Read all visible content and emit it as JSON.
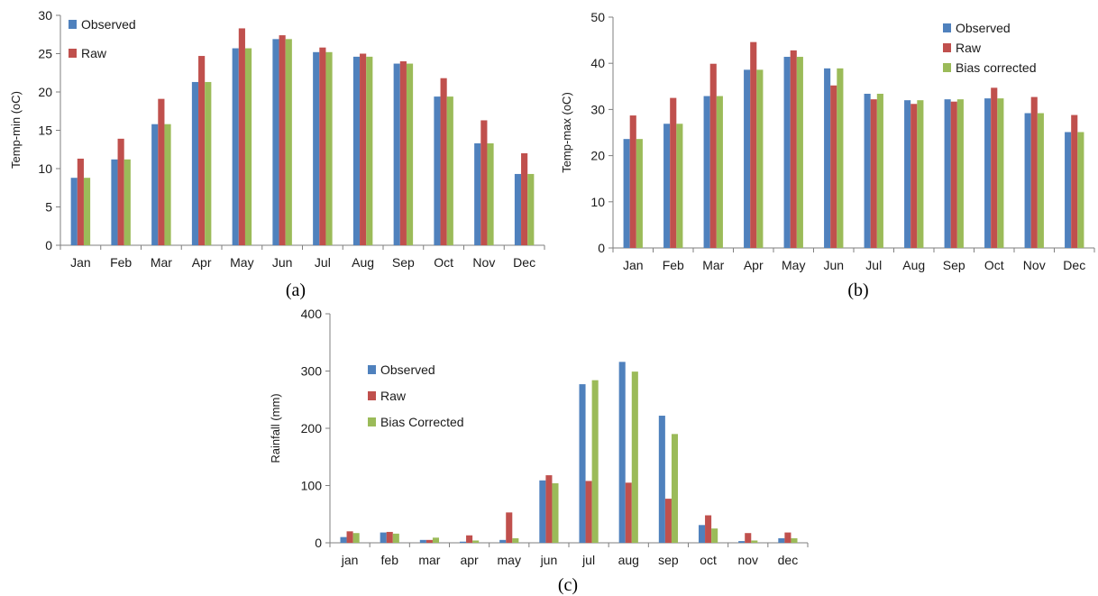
{
  "chart_data": [
    {
      "type": "bar",
      "panel_label": "(a)",
      "ylabel": "Temp-min (oC)",
      "ylim": [
        0,
        30
      ],
      "yticks": [
        0,
        5,
        10,
        15,
        20,
        25,
        30
      ],
      "categories": [
        "Jan",
        "Feb",
        "Mar",
        "Apr",
        "May",
        "Jun",
        "Jul",
        "Aug",
        "Sep",
        "Oct",
        "Nov",
        "Dec"
      ],
      "legend": {
        "placement": "top-left",
        "entries": [
          "Observed",
          "Raw"
        ]
      },
      "series": [
        {
          "name": "Observed",
          "color": "#4f81bd",
          "values": [
            8.8,
            11.2,
            15.8,
            21.3,
            25.7,
            26.9,
            25.2,
            24.6,
            23.7,
            19.4,
            13.3,
            9.3
          ]
        },
        {
          "name": "Raw",
          "color": "#c0504d",
          "values": [
            11.3,
            13.9,
            19.1,
            24.7,
            28.3,
            27.4,
            25.8,
            25.0,
            24.0,
            21.8,
            16.3,
            12.0
          ]
        },
        {
          "name": "",
          "color": "#9bbb59",
          "values": [
            8.8,
            11.2,
            15.8,
            21.3,
            25.7,
            26.9,
            25.2,
            24.6,
            23.7,
            19.4,
            13.3,
            9.3
          ]
        }
      ],
      "grid": false
    },
    {
      "type": "bar",
      "panel_label": "(b)",
      "ylabel": "Temp-max (oC)",
      "ylim": [
        0,
        50
      ],
      "yticks": [
        0,
        10,
        20,
        30,
        40,
        50
      ],
      "categories": [
        "Jan",
        "Feb",
        "Mar",
        "Apr",
        "May",
        "Jun",
        "Jul",
        "Aug",
        "Sep",
        "Oct",
        "Nov",
        "Dec"
      ],
      "legend": {
        "placement": "top-right",
        "entries": [
          "Observed",
          "Raw",
          "Bias corrected"
        ]
      },
      "series": [
        {
          "name": "Observed",
          "color": "#4f81bd",
          "values": [
            23.6,
            26.9,
            32.9,
            38.6,
            41.4,
            38.9,
            33.4,
            32.0,
            32.2,
            32.4,
            29.2,
            25.1
          ]
        },
        {
          "name": "Raw",
          "color": "#c0504d",
          "values": [
            28.7,
            32.5,
            39.9,
            44.6,
            42.8,
            35.2,
            32.2,
            31.2,
            31.7,
            34.7,
            32.7,
            28.8
          ]
        },
        {
          "name": "Bias corrected",
          "color": "#9bbb59",
          "values": [
            23.6,
            26.9,
            32.9,
            38.6,
            41.4,
            38.9,
            33.4,
            32.0,
            32.2,
            32.4,
            29.2,
            25.1
          ]
        }
      ],
      "grid": false
    },
    {
      "type": "bar",
      "panel_label": "(c)",
      "ylabel": "Rainfall (mm)",
      "ylim": [
        0,
        400
      ],
      "yticks": [
        0,
        100,
        200,
        300,
        400
      ],
      "categories": [
        "jan",
        "feb",
        "mar",
        "apr",
        "may",
        "jun",
        "jul",
        "aug",
        "sep",
        "oct",
        "nov",
        "dec"
      ],
      "legend": {
        "placement": "top-left",
        "entries": [
          "Observed",
          "Raw",
          "Bias Corrected"
        ]
      },
      "series": [
        {
          "name": "Observed",
          "color": "#4f81bd",
          "values": [
            10,
            18,
            5,
            2,
            5,
            109,
            277,
            316,
            222,
            31,
            3,
            8
          ]
        },
        {
          "name": "Raw",
          "color": "#c0504d",
          "values": [
            20,
            19,
            5,
            13,
            53,
            118,
            108,
            105,
            77,
            48,
            17,
            18
          ]
        },
        {
          "name": "Bias Corrected",
          "color": "#9bbb59",
          "values": [
            17,
            16,
            9,
            4,
            8,
            104,
            284,
            299,
            190,
            25,
            4,
            8
          ]
        }
      ],
      "grid": false
    }
  ]
}
